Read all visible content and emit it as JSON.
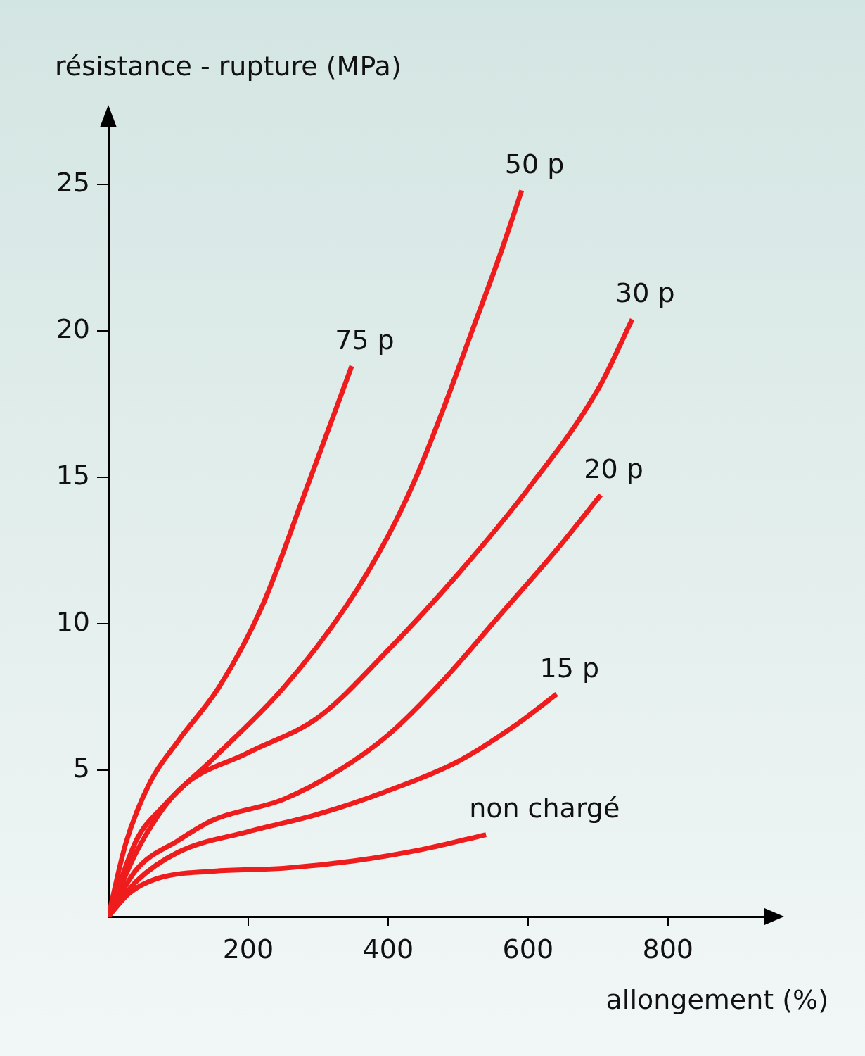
{
  "chart_data": {
    "type": "line",
    "y_label": "résistance - rupture (MPa)",
    "x_label": "allongement (%)",
    "xlim": [
      0,
      940
    ],
    "xticks": [
      200,
      400,
      600,
      800
    ],
    "ylim": [
      0,
      27
    ],
    "yticks": [
      5,
      10,
      15,
      20,
      25
    ],
    "grid": false,
    "series": [
      {
        "name": "75 p",
        "color": "#ee1c1c",
        "x": [
          0,
          25,
          60,
          100,
          160,
          220,
          280,
          348
        ],
        "values": [
          0,
          2.5,
          4.6,
          6.0,
          7.9,
          10.6,
          14.4,
          18.8
        ]
      },
      {
        "name": "50 p",
        "color": "#ee1c1c",
        "x": [
          0,
          40,
          80,
          150,
          250,
          340,
          400,
          440,
          480,
          520,
          560,
          591
        ],
        "values": [
          0,
          2.6,
          3.8,
          5.4,
          7.8,
          10.6,
          13.0,
          15.0,
          17.4,
          20.0,
          22.6,
          24.8
        ]
      },
      {
        "name": "30 p",
        "color": "#ee1c1c",
        "x": [
          0,
          40,
          100,
          200,
          300,
          400,
          500,
          600,
          700,
          749
        ],
        "values": [
          0,
          2.2,
          4.3,
          5.6,
          6.8,
          9.1,
          11.7,
          14.6,
          18.0,
          20.4
        ]
      },
      {
        "name": "20 p",
        "color": "#ee1c1c",
        "x": [
          0,
          40,
          100,
          150,
          250,
          330,
          400,
          480,
          560,
          640,
          704
        ],
        "values": [
          0,
          1.6,
          2.6,
          3.3,
          4.0,
          5.0,
          6.2,
          8.1,
          10.3,
          12.5,
          14.4
        ]
      },
      {
        "name": "15 p",
        "color": "#ee1c1c",
        "x": [
          0,
          40,
          100,
          200,
          300,
          400,
          500,
          580,
          641
        ],
        "values": [
          0,
          1.2,
          2.2,
          2.9,
          3.5,
          4.3,
          5.3,
          6.5,
          7.6
        ]
      },
      {
        "name": "non chargé",
        "color": "#ee1c1c",
        "x": [
          0,
          30,
          70,
          150,
          250,
          350,
          450,
          540
        ],
        "values": [
          0,
          0.8,
          1.3,
          1.55,
          1.65,
          1.9,
          2.3,
          2.8
        ]
      }
    ]
  }
}
